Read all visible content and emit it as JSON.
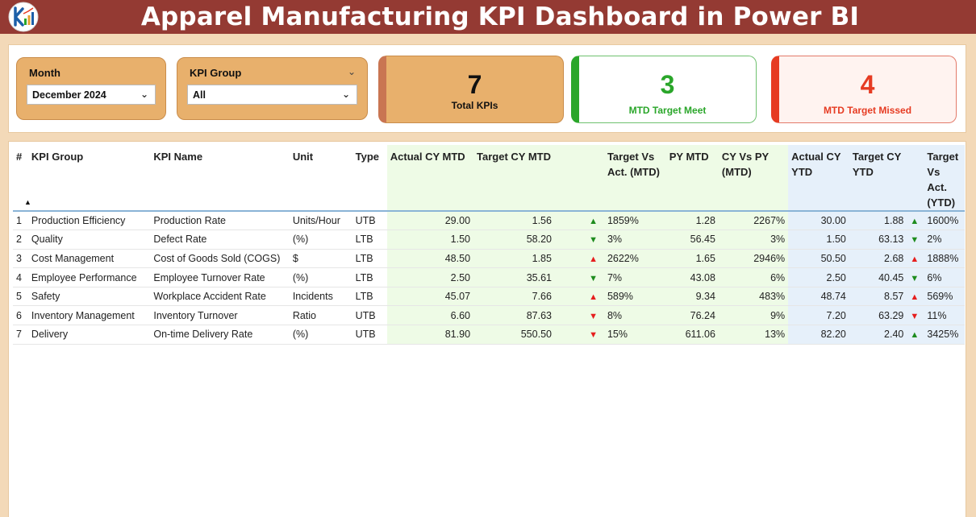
{
  "header": {
    "title": "Apparel Manufacturing KPI Dashboard in Power BI"
  },
  "slicers": {
    "month": {
      "label": "Month",
      "value": "December 2024"
    },
    "kpi_group": {
      "label": "KPI Group",
      "value": "All"
    }
  },
  "cards": {
    "total": {
      "value": "7",
      "label": "Total KPIs"
    },
    "meet": {
      "value": "3",
      "label": "MTD Target Meet"
    },
    "missed": {
      "value": "4",
      "label": "MTD Target Missed"
    }
  },
  "colors": {
    "title_bar": "#943a33",
    "accent": "#e8b06c",
    "green": "#2aa62a",
    "red": "#e63b22"
  },
  "table": {
    "headers": {
      "num": "#",
      "group": "KPI Group",
      "name": "KPI Name",
      "unit": "Unit",
      "type": "Type",
      "actual_mtd": "Actual CY MTD",
      "target_mtd": "Target CY MTD",
      "tva_mtd": "Target Vs Act. (MTD)",
      "py_mtd": "PY MTD",
      "cy_py_mtd": "CY Vs PY (MTD)",
      "actual_ytd": "Actual CY YTD",
      "target_ytd": "Target CY YTD",
      "tva_ytd": "Target Vs Act. (YTD)"
    },
    "rows": [
      {
        "num": "1",
        "group": "Production Efficiency",
        "name": "Production Rate",
        "unit": "Units/Hour",
        "type": "UTB",
        "actual_mtd": "29.00",
        "target_mtd": "1.56",
        "mtd_arrow": "up-green",
        "tva_mtd": "1859%",
        "py_mtd": "1.28",
        "cy_py_mtd": "2267%",
        "actual_ytd": "30.00",
        "target_ytd": "1.88",
        "ytd_arrow": "up-green",
        "tva_ytd": "1600%"
      },
      {
        "num": "2",
        "group": "Quality",
        "name": "Defect Rate",
        "unit": " (%)",
        "type": "LTB",
        "actual_mtd": "1.50",
        "target_mtd": "58.20",
        "mtd_arrow": "down-green",
        "tva_mtd": "3%",
        "py_mtd": "56.45",
        "cy_py_mtd": "3%",
        "actual_ytd": "1.50",
        "target_ytd": "63.13",
        "ytd_arrow": "down-green",
        "tva_ytd": "2%"
      },
      {
        "num": "3",
        "group": "Cost Management",
        "name": "Cost of Goods Sold (COGS)",
        "unit": "$",
        "type": "LTB",
        "actual_mtd": "48.50",
        "target_mtd": "1.85",
        "mtd_arrow": "up-red",
        "tva_mtd": "2622%",
        "py_mtd": "1.65",
        "cy_py_mtd": "2946%",
        "actual_ytd": "50.50",
        "target_ytd": "2.68",
        "ytd_arrow": "up-red",
        "tva_ytd": "1888%"
      },
      {
        "num": "4",
        "group": "Employee Performance",
        "name": "Employee Turnover Rate",
        "unit": " (%)",
        "type": "LTB",
        "actual_mtd": "2.50",
        "target_mtd": "35.61",
        "mtd_arrow": "down-green",
        "tva_mtd": "7%",
        "py_mtd": "43.08",
        "cy_py_mtd": "6%",
        "actual_ytd": "2.50",
        "target_ytd": "40.45",
        "ytd_arrow": "down-green",
        "tva_ytd": "6%"
      },
      {
        "num": "5",
        "group": "Safety",
        "name": "Workplace Accident Rate",
        "unit": "Incidents",
        "type": "LTB",
        "actual_mtd": "45.07",
        "target_mtd": "7.66",
        "mtd_arrow": "up-red",
        "tva_mtd": "589%",
        "py_mtd": "9.34",
        "cy_py_mtd": "483%",
        "actual_ytd": "48.74",
        "target_ytd": "8.57",
        "ytd_arrow": "up-red",
        "tva_ytd": "569%"
      },
      {
        "num": "6",
        "group": "Inventory Management",
        "name": "Inventory Turnover",
        "unit": "Ratio",
        "type": "UTB",
        "actual_mtd": "6.60",
        "target_mtd": "87.63",
        "mtd_arrow": "down-red",
        "tva_mtd": "8%",
        "py_mtd": "76.24",
        "cy_py_mtd": "9%",
        "actual_ytd": "7.20",
        "target_ytd": "63.29",
        "ytd_arrow": "down-red",
        "tva_ytd": "11%"
      },
      {
        "num": "7",
        "group": "Delivery",
        "name": "On-time Delivery Rate",
        "unit": " (%)",
        "type": "UTB",
        "actual_mtd": "81.90",
        "target_mtd": "550.50",
        "mtd_arrow": "down-red",
        "tva_mtd": "15%",
        "py_mtd": "611.06",
        "cy_py_mtd": "13%",
        "actual_ytd": "82.20",
        "target_ytd": "2.40",
        "ytd_arrow": "up-green",
        "tva_ytd": "3425%"
      }
    ]
  }
}
